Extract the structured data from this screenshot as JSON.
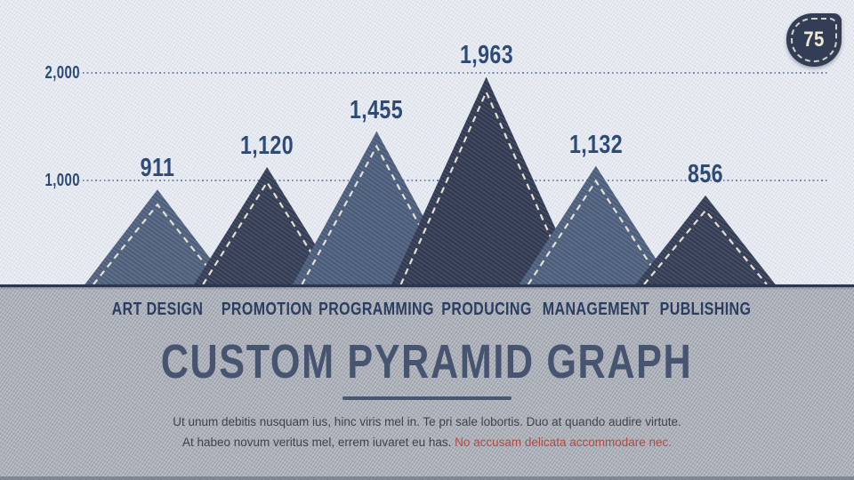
{
  "badge": {
    "page_number": "75"
  },
  "chart_data": {
    "type": "bar",
    "style": "triangle-peak pyramid infographic on denim fabric texture",
    "categories": [
      "ART DESIGN",
      "PROMOTION",
      "PROGRAMMING",
      "PRODUCING",
      "MANAGEMENT",
      "PUBLISHING"
    ],
    "values": [
      911,
      1120,
      1455,
      1963,
      1132,
      856
    ],
    "value_labels": [
      "911",
      "1,120",
      "1,455",
      "1,963",
      "1,132",
      "856"
    ],
    "y_axis": {
      "range": [
        0,
        2300
      ],
      "ticks": [
        {
          "value": 2000,
          "label": "2,000"
        },
        {
          "value": 1000,
          "label": "1,000"
        }
      ],
      "gridlines": "dotted horizontal"
    },
    "legend": "none",
    "bar_colors": [
      "#51627f",
      "#363f57",
      "#4d5f7d",
      "#333c54",
      "#4f617f",
      "#363f57"
    ],
    "stitch_color": "#ece8da",
    "value_label_color": "#2e4a78",
    "category_label_color": "#2b3d60"
  },
  "title_block": {
    "title": "CUSTOM PYRAMID GRAPH",
    "paragraph_line1": "Ut unum debitis nusquam ius, hinc viris mel in. Te pri sale lobortis. Duo at quando audire virtute.",
    "paragraph_line2_normal": "At habeo novum veritus mel, errem iuvaret eu has. ",
    "paragraph_line2_highlight": "No accusam delicata accommodare nec.",
    "highlight_color": "#b5483f"
  }
}
